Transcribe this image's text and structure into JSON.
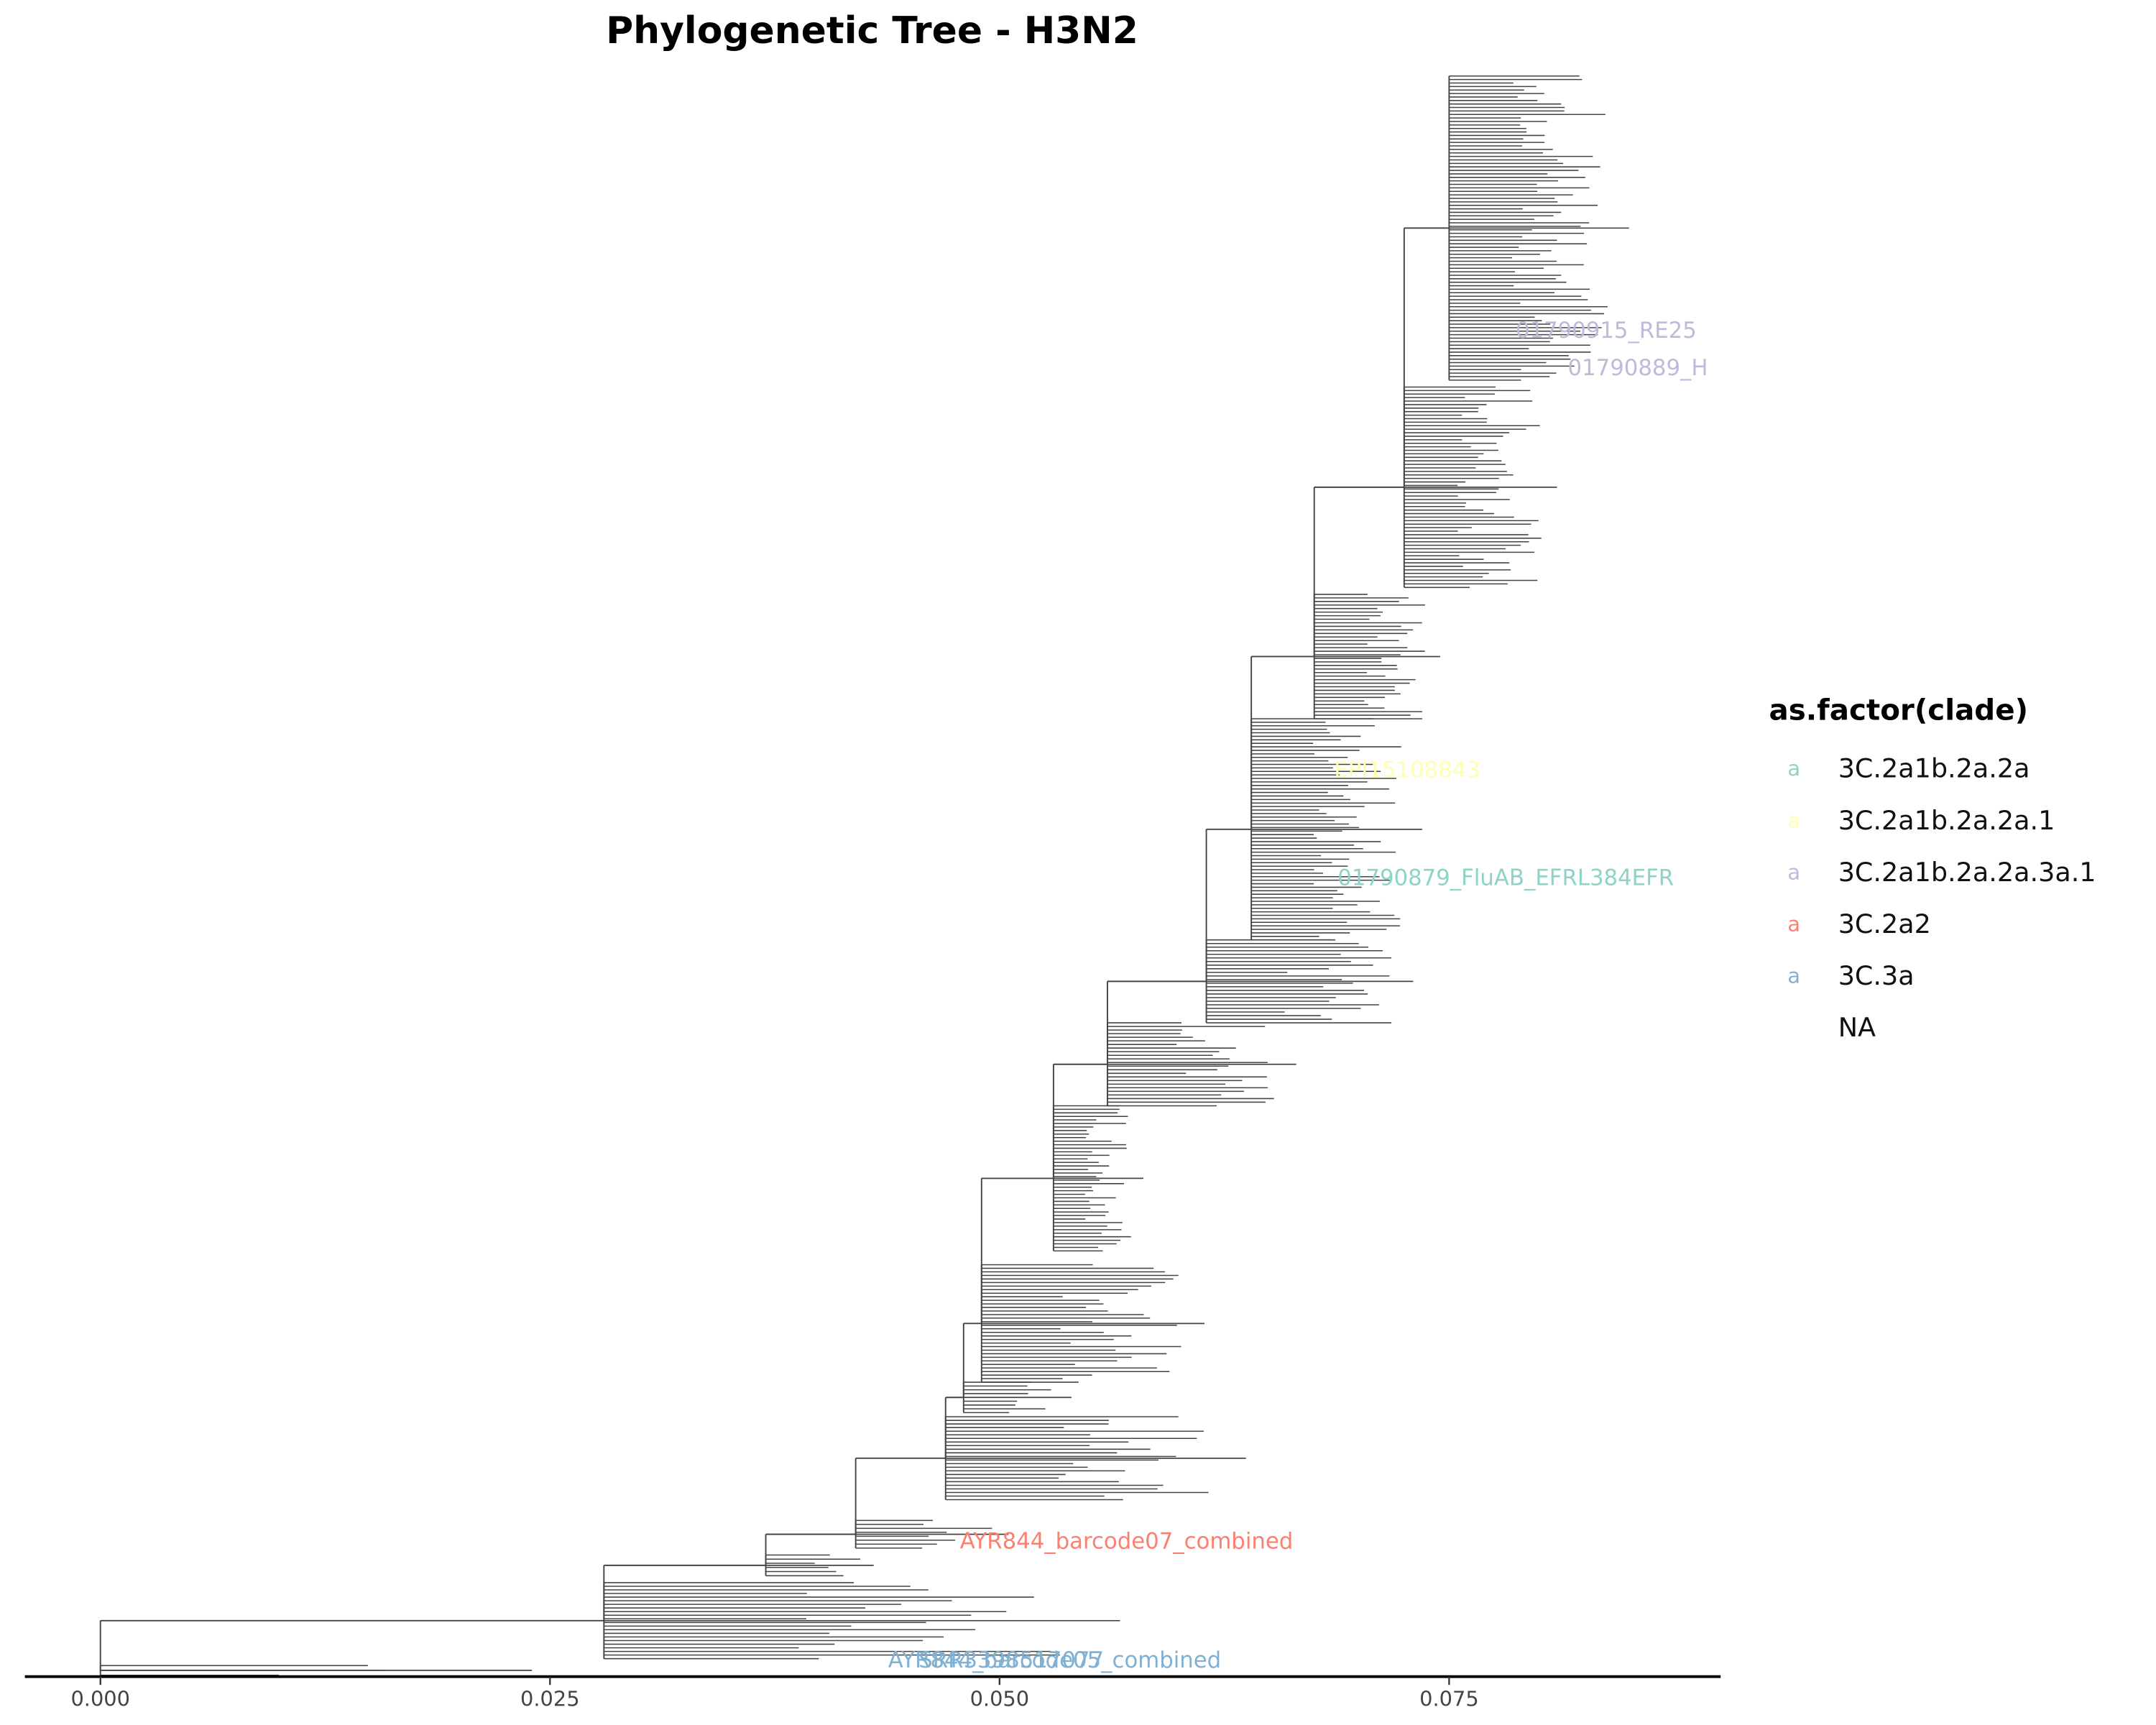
{
  "chart_data": {
    "type": "tree",
    "title": "Phylogenetic Tree - H3N2",
    "xlim": [
      -0.0042,
      0.0901
    ],
    "xticks": [
      {
        "value": 0,
        "label": "0.000"
      },
      {
        "value": 0.025,
        "label": "0.025"
      },
      {
        "value": 0.05,
        "label": "0.050"
      },
      {
        "value": 0.075,
        "label": "0.075"
      }
    ],
    "clades": [
      {
        "node": 0,
        "tip_max": 0.024
      },
      {
        "node": 0.028,
        "tip_max": 0.0567
      },
      {
        "node": 0.037,
        "tip_max": 0.043
      },
      {
        "node": 0.042,
        "tip_max": 0.0505
      },
      {
        "node": 0.047,
        "tip_max": 0.0637
      },
      {
        "node": 0.048,
        "tip_max": 0.054
      },
      {
        "node": 0.049,
        "tip_max": 0.0614
      },
      {
        "node": 0.053,
        "tip_max": 0.058
      },
      {
        "node": 0.056,
        "tip_max": 0.0665
      },
      {
        "node": 0.0615,
        "tip_max": 0.073
      },
      {
        "node": 0.064,
        "tip_max": 0.0735
      },
      {
        "node": 0.0675,
        "tip_max": 0.0745
      },
      {
        "node": 0.0725,
        "tip_max": 0.081
      },
      {
        "node": 0.075,
        "tip_max": 0.085
      }
    ],
    "tip_labels": [
      {
        "label": "01790915_RE25",
        "x": 0.0787,
        "clade": "3C.2a1b.2a.2a.3a.1"
      },
      {
        "label": "01790889_H",
        "x": 0.0816,
        "clade": "3C.2a1b.2a.2a.3a.1"
      },
      {
        "label": "EPI15108843",
        "x": 0.0686,
        "clade": "3C.2a1b.2a.2a.1"
      },
      {
        "label": "01790879_FluAB_EFRL384EFR",
        "x": 0.0688,
        "clade": "3C.2a1b.2a.2a"
      },
      {
        "label": "AYR844_barcode07_combined",
        "x": 0.0478,
        "clade": "3C.2a2"
      },
      {
        "label": "AYR844_barcode05_combined",
        "x": 0.0438,
        "clade": "3C.3a"
      },
      {
        "label": "SRR3398517077",
        "x": 0.0455,
        "clade": "3C.3a"
      }
    ],
    "legend": {
      "title": "as.factor(clade)",
      "glyph": "a",
      "series": [
        {
          "name": "3C.2a1b.2a.2a",
          "color": "#8dd3c7"
        },
        {
          "name": "3C.2a1b.2a.2a.1",
          "color": "#ffffb3"
        },
        {
          "name": "3C.2a1b.2a.2a.3a.1",
          "color": "#bebada"
        },
        {
          "name": "3C.2a2",
          "color": "#fb8072"
        },
        {
          "name": "3C.3a",
          "color": "#80b1d3"
        },
        {
          "name": "NA",
          "color": "#ffffff"
        }
      ]
    }
  }
}
